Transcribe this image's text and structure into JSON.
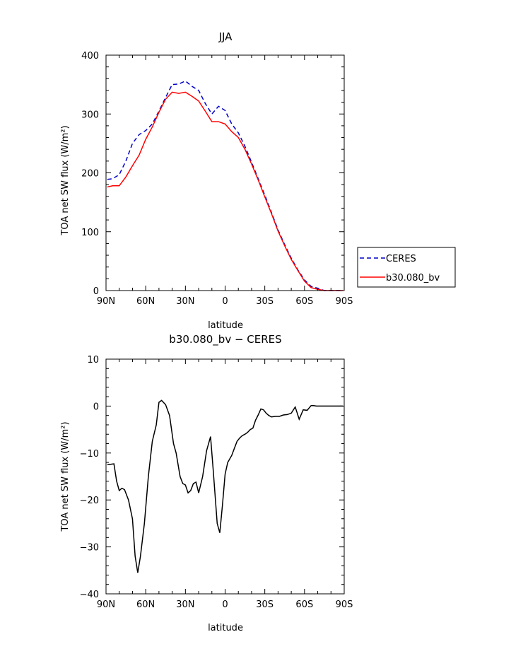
{
  "chart_data": [
    {
      "type": "line",
      "title": "JJA",
      "xlabel": "latitude",
      "ylabel": "TOA net SW flux (W/m²)",
      "xlim": [
        90,
        -90
      ],
      "ylim": [
        0,
        400
      ],
      "xticks": [
        90,
        60,
        30,
        0,
        -30,
        -60,
        -90
      ],
      "xticklabels": [
        "90N",
        "60N",
        "30N",
        "0",
        "30S",
        "60S",
        "90S"
      ],
      "yticks": [
        0,
        100,
        200,
        300,
        400
      ],
      "legend_position": "right",
      "grid": false,
      "x": [
        89,
        85,
        80,
        75,
        70,
        65,
        60,
        55,
        50,
        45,
        40,
        35,
        30,
        25,
        20,
        15,
        10,
        5,
        0,
        -5,
        -10,
        -15,
        -20,
        -25,
        -30,
        -35,
        -40,
        -45,
        -50,
        -55,
        -60,
        -65,
        -70,
        -75,
        -80,
        -85,
        -89
      ],
      "series": [
        {
          "name": "CERES",
          "color": "#0000cc",
          "dash": "dashed",
          "values": [
            189,
            190,
            197,
            220,
            250,
            265,
            272,
            283,
            305,
            328,
            350,
            351,
            356,
            347,
            340,
            318,
            300,
            313,
            306,
            283,
            268,
            245,
            218,
            190,
            162,
            133,
            103,
            78,
            55,
            35,
            18,
            7,
            4,
            0,
            0,
            0,
            0
          ]
        },
        {
          "name": "b30.080_bv",
          "color": "#ff0000",
          "dash": "solid",
          "values": [
            176,
            178,
            178,
            193,
            212,
            230,
            257,
            278,
            303,
            325,
            337,
            335,
            337,
            330,
            322,
            305,
            287,
            287,
            283,
            270,
            260,
            240,
            215,
            188,
            159,
            131,
            101,
            76,
            53,
            34,
            16,
            5,
            2,
            0,
            0,
            0,
            0
          ]
        }
      ]
    },
    {
      "type": "line",
      "title": "b30.080_bv − CERES",
      "xlabel": "latitude",
      "ylabel": "TOA net SW flux (W/m²)",
      "xlim": [
        90,
        -90
      ],
      "ylim": [
        -40,
        10
      ],
      "xticks": [
        90,
        60,
        30,
        0,
        -30,
        -60,
        -90
      ],
      "xticklabels": [
        "90N",
        "60N",
        "30N",
        "0",
        "30S",
        "60S",
        "90S"
      ],
      "yticks": [
        -40,
        -30,
        -20,
        -10,
        0,
        10
      ],
      "yticklabels": [
        "−40",
        "−30",
        "−20",
        "−10",
        "0",
        "10"
      ],
      "grid": false,
      "x": [
        89,
        84,
        82,
        80,
        78,
        76,
        73,
        70,
        68,
        66,
        64,
        61,
        58,
        55,
        52,
        50,
        48,
        45,
        42,
        39,
        37,
        34,
        32,
        30,
        28,
        26,
        24,
        22,
        20,
        17,
        14,
        11,
        9,
        6,
        4,
        2,
        0,
        -2,
        -5,
        -7,
        -9,
        -11,
        -13,
        -15,
        -17,
        -19,
        -21,
        -23,
        -25,
        -27,
        -29,
        -31,
        -33,
        -35,
        -38,
        -41,
        -44,
        -47,
        -50,
        -53,
        -56,
        -59,
        -62,
        -65,
        -67,
        -69,
        -71,
        -73,
        -76,
        -80,
        -85,
        -89
      ],
      "series": [
        {
          "name": "",
          "color": "#000000",
          "dash": "solid",
          "values": [
            -12.5,
            -12.3,
            -16,
            -18,
            -17.5,
            -17.8,
            -20,
            -24,
            -32,
            -35.5,
            -32,
            -25,
            -15,
            -7.5,
            -4,
            0.8,
            1.2,
            0.3,
            -2,
            -8,
            -10,
            -15,
            -16.5,
            -16.8,
            -18.5,
            -18,
            -16.5,
            -16.2,
            -18.5,
            -15,
            -9.5,
            -6.5,
            -13.5,
            -25,
            -27,
            -21,
            -14.5,
            -12,
            -10.5,
            -9,
            -7.5,
            -6.8,
            -6.3,
            -6.0,
            -5.6,
            -5.0,
            -4.7,
            -3.0,
            -1.9,
            -0.6,
            -0.8,
            -1.5,
            -2.0,
            -2.3,
            -2.2,
            -2.2,
            -1.9,
            -1.8,
            -1.5,
            -0.2,
            -2.8,
            -0.8,
            -0.9,
            0.1,
            0.1,
            0.0,
            0.0,
            0.0,
            0.0,
            0.0,
            0.0,
            0.0
          ]
        }
      ]
    }
  ]
}
